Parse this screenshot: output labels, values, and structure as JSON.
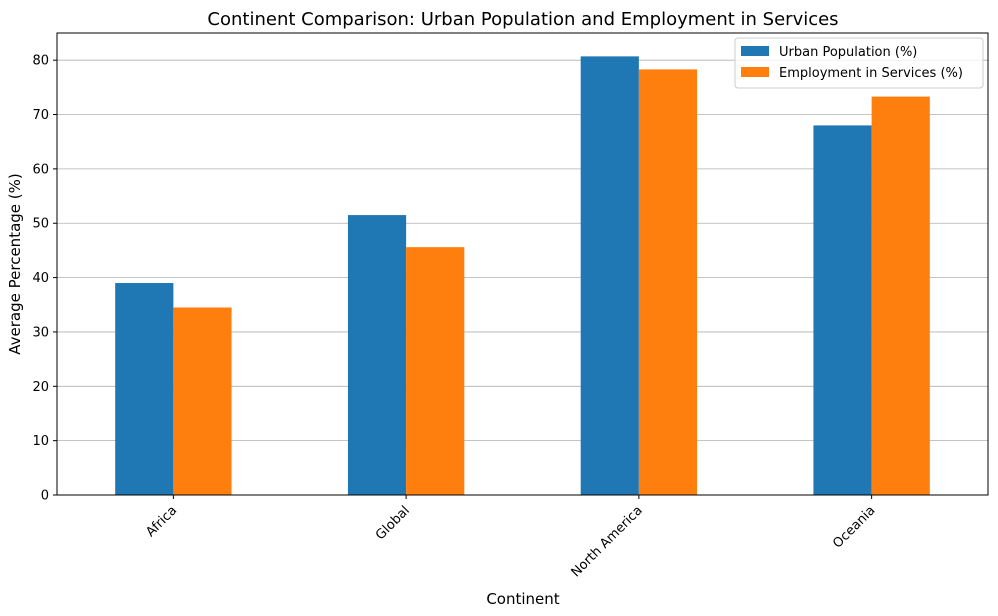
{
  "chart_data": {
    "type": "bar",
    "title": "Continent Comparison: Urban Population and Employment in Services",
    "xlabel": "Continent",
    "ylabel": "Average Percentage (%)",
    "categories": [
      "Africa",
      "Global",
      "North America",
      "Oceania"
    ],
    "series": [
      {
        "name": "Urban Population (%)",
        "values": [
          39.0,
          51.5,
          80.7,
          68.0
        ],
        "color": "#1f77b4"
      },
      {
        "name": "Employment in Services (%)",
        "values": [
          34.5,
          45.6,
          78.3,
          73.3
        ],
        "color": "#ff7f0e"
      }
    ],
    "ylim": [
      0,
      85
    ],
    "yticks": [
      0,
      10,
      20,
      30,
      40,
      50,
      60,
      70,
      80
    ],
    "grid": "y",
    "legend_position": "top-right",
    "x_tick_rotation": 45
  }
}
